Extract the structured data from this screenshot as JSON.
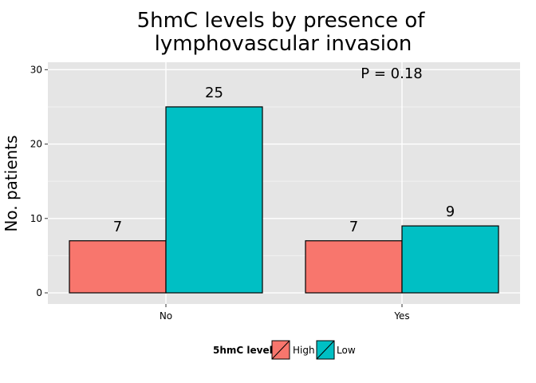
{
  "chart_data": {
    "type": "bar",
    "title_lines": [
      "5hmC levels by presence of",
      "lymphovascular invasion"
    ],
    "xlabel": "",
    "ylabel": "No. patients",
    "categories": [
      "No",
      "Yes"
    ],
    "series": [
      {
        "name": "High",
        "values": [
          7,
          7
        ],
        "color": "#F8766D"
      },
      {
        "name": "Low",
        "values": [
          25,
          9
        ],
        "color": "#00BFC4"
      }
    ],
    "ylim": [
      -1.5,
      31
    ],
    "yticks": [
      0,
      10,
      20,
      30
    ],
    "annotation": "P = 0.18",
    "legend": {
      "title": "5hmC level",
      "position": "bottom"
    },
    "grid": true,
    "panel_color": "#E5E5E5",
    "grid_color": "#FFFFFF"
  }
}
